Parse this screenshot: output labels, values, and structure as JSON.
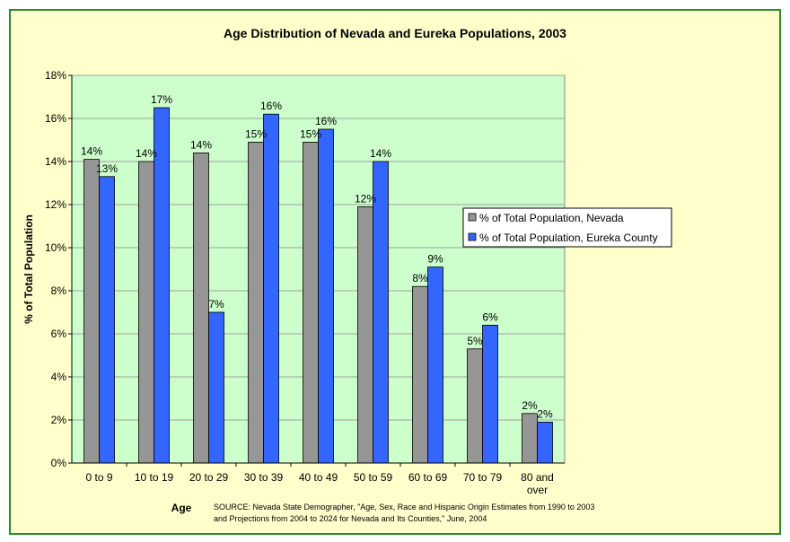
{
  "chart_data": {
    "type": "bar",
    "title": "Age Distribution of Nevada and Eureka Populations, 2003",
    "xlabel": "Age",
    "ylabel": "% of Total Population",
    "ylim": [
      0,
      18
    ],
    "ytick_step": 2,
    "ytick_suffix": "%",
    "grid": true,
    "legend_position": "right",
    "categories": [
      [
        "0 to 9"
      ],
      [
        "10 to 19"
      ],
      [
        "20 to 29"
      ],
      [
        "30 to 39"
      ],
      [
        "40 to 49"
      ],
      [
        "50 to 59"
      ],
      [
        "60 to 69"
      ],
      [
        "70 to 79"
      ],
      [
        "80 and",
        "over"
      ]
    ],
    "series": [
      {
        "name": "% of Total Population, Nevada",
        "color": "#969696",
        "values": [
          14.1,
          14.0,
          14.4,
          14.9,
          14.9,
          11.9,
          8.2,
          5.3,
          2.3
        ],
        "labels": [
          "14%",
          "14%",
          "14%",
          "15%",
          "15%",
          "12%",
          "8%",
          "5%",
          "2%"
        ]
      },
      {
        "name": "% of Total Population, Eureka County",
        "color": "#3366ff",
        "values": [
          13.3,
          16.5,
          7.0,
          16.2,
          15.5,
          14.0,
          9.1,
          6.4,
          1.9
        ],
        "labels": [
          "13%",
          "17%",
          "7%",
          "16%",
          "16%",
          "14%",
          "9%",
          "6%",
          "2%"
        ]
      }
    ],
    "source": [
      "SOURCE: Nevada State Demographer, \"Age, Sex, Race and Hispanic Origin Estimates from 1990 to 2003",
      "and Projections from 2004 to 2024 for Nevada and Its Counties,\" June, 2004"
    ],
    "colors": {
      "frame_background": "#ffffcc",
      "frame_border": "#2f8a2f",
      "plot_background": "#ccffcc"
    }
  }
}
